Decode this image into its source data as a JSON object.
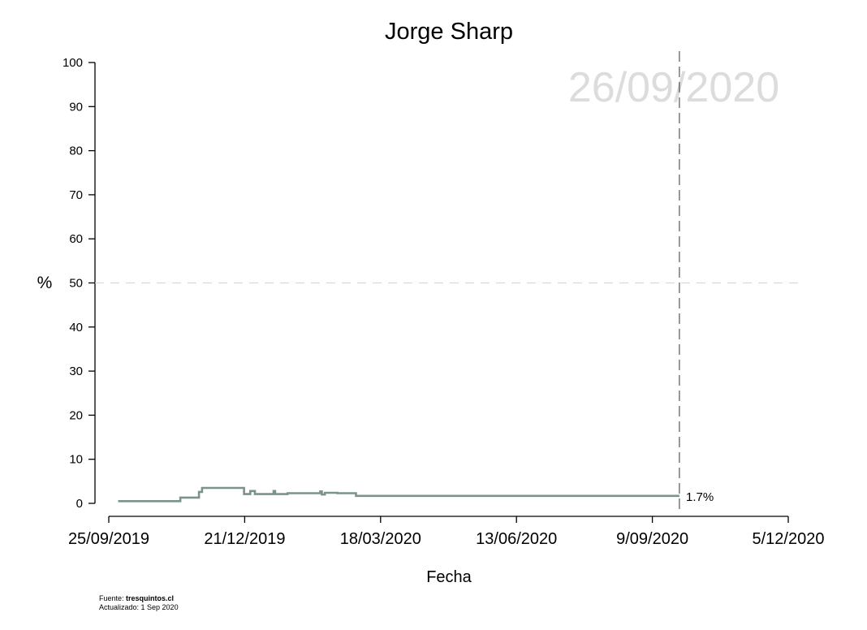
{
  "chart_data": {
    "type": "line",
    "title": "Jorge Sharp",
    "xlabel": "Fecha",
    "ylabel": "%",
    "x_tick_labels": [
      "25/09/2019",
      "21/12/2019",
      "18/03/2020",
      "13/06/2020",
      "9/09/2020",
      "5/12/2020"
    ],
    "y_ticks": [
      0,
      10,
      20,
      30,
      40,
      50,
      60,
      70,
      80,
      90,
      100
    ],
    "ylim": [
      0,
      100
    ],
    "xlim": [
      "2019-09-25",
      "2020-12-05"
    ],
    "reference_line_y": 50,
    "current_date_line": "2020-09-26",
    "date_stamp": "26/09/2020",
    "end_label": "1.7%",
    "grid": false,
    "line_color": "#7a9488",
    "series": [
      {
        "step": true,
        "x": [
          "2019-10-01",
          "2019-10-31",
          "2019-11-10",
          "2019-11-22",
          "2019-11-24",
          "2019-12-21",
          "2019-12-25",
          "2019-12-28",
          "2020-01-09",
          "2020-01-10",
          "2020-01-14",
          "2020-01-18",
          "2020-01-29",
          "2020-02-08",
          "2020-02-09",
          "2020-02-11",
          "2020-02-17",
          "2020-02-19",
          "2020-03-02",
          "2020-09-26"
        ],
        "values": [
          0.5,
          0.5,
          1.3,
          2.6,
          3.5,
          2.1,
          2.8,
          2.1,
          2.8,
          2.1,
          2.1,
          2.3,
          2.3,
          2.7,
          2.0,
          2.4,
          2.4,
          2.3,
          1.7,
          1.7
        ]
      }
    ]
  },
  "footer": {
    "source_prefix": "Fuente: ",
    "source_name": "tresquintos.cl",
    "updated": "Actualizado: 1 Sep 2020"
  }
}
